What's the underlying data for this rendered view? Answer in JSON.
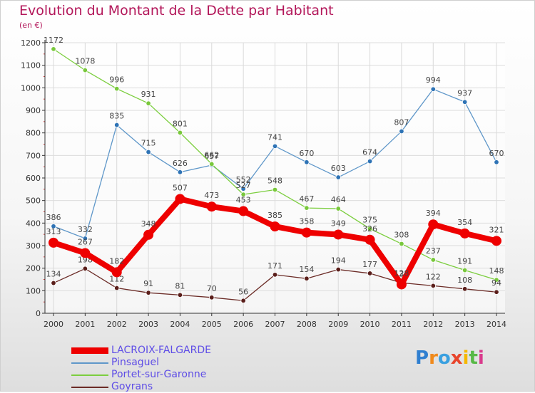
{
  "page": {
    "title": "Evolution du Montant de la Dette par Habitant",
    "subtitle": "(en €)",
    "logo_text": "Proxiti",
    "colors": {
      "title": "#b3175a",
      "axis": "#333333",
      "grid": "#dddddd"
    }
  },
  "chart_data": {
    "type": "line",
    "title": "Evolution du Montant de la Dette par Habitant",
    "ylabel": "(en €)",
    "xlabel": "",
    "ylim": [
      0,
      1200
    ],
    "yticks": [
      0,
      100,
      200,
      300,
      400,
      500,
      600,
      700,
      800,
      900,
      1000,
      1100,
      1200
    ],
    "grid": true,
    "legend_position": "bottom-left",
    "categories": [
      "2000",
      "2001",
      "2002",
      "2003",
      "2004",
      "2005",
      "2006",
      "2007",
      "2008",
      "2009",
      "2010",
      "2011",
      "2012",
      "2013",
      "2014"
    ],
    "series": [
      {
        "name": "Pinsaguel",
        "color": "#5f97c9",
        "values": [
          386,
          332,
          835,
          715,
          626,
          657,
          552,
          741,
          670,
          603,
          674,
          807,
          994,
          937,
          670
        ]
      },
      {
        "name": "Portet-sur-Garonne",
        "color": "#7cce3f",
        "values": [
          1172,
          1078,
          996,
          931,
          801,
          662,
          527,
          548,
          467,
          464,
          375,
          308,
          237,
          191,
          148
        ]
      },
      {
        "name": "Goyrans",
        "color": "#6b2b26",
        "values": [
          134,
          198,
          112,
          91,
          81,
          70,
          56,
          171,
          154,
          194,
          177,
          135,
          122,
          108,
          94
        ]
      },
      {
        "name": "LACROIX-FALGARDE",
        "color": "#ee0000",
        "values": [
          313,
          267,
          182,
          348,
          507,
          473,
          453,
          385,
          358,
          349,
          326,
          128,
          394,
          354,
          321
        ]
      }
    ]
  },
  "legend": [
    {
      "label": "LACROIX-FALGARDE",
      "color": "#ee0000",
      "thick": true
    },
    {
      "label": "Pinsaguel",
      "color": "#5f97c9",
      "thick": false
    },
    {
      "label": "Portet-sur-Garonne",
      "color": "#7cce3f",
      "thick": false
    },
    {
      "label": "Goyrans",
      "color": "#6b2b26",
      "thick": false
    }
  ]
}
